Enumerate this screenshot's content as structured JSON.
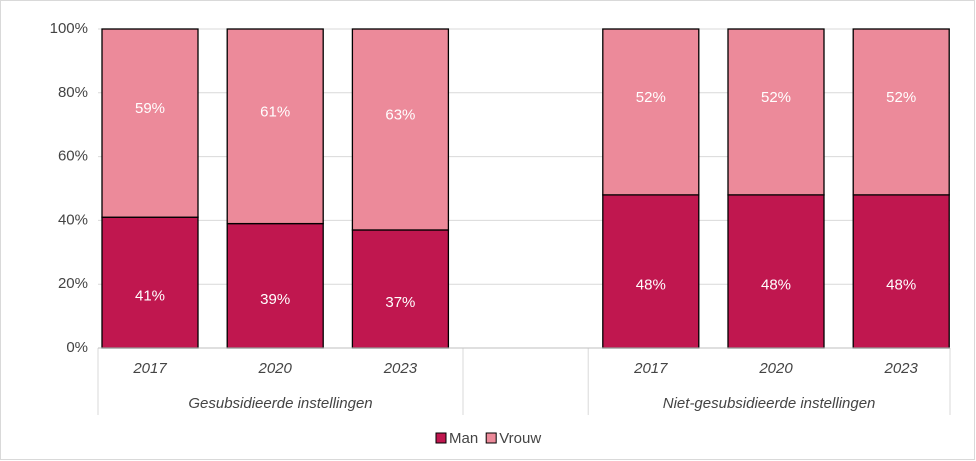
{
  "chart_data": {
    "type": "stacked_bar",
    "groups": [
      {
        "name": "Gesubsidieerde instellingen",
        "categories": [
          "2017",
          "2020",
          "2023"
        ]
      },
      {
        "name": null,
        "categories": [
          null
        ]
      },
      {
        "name": "Niet-gesubsidieerde instellingen",
        "categories": [
          "2017",
          "2020",
          "2023"
        ]
      }
    ],
    "series": [
      {
        "name": "Man",
        "color": "#c0174f",
        "values": [
          41,
          39,
          37,
          null,
          48,
          48,
          48
        ],
        "value_labels": [
          "41%",
          "39%",
          "37%",
          null,
          "48%",
          "48%",
          "48%"
        ]
      },
      {
        "name": "Vrouw",
        "color": "#ec8a9a",
        "values": [
          59,
          61,
          63,
          null,
          52,
          52,
          52
        ],
        "value_labels": [
          "59%",
          "61%",
          "63%",
          null,
          "52%",
          "52%",
          "52%"
        ]
      }
    ],
    "ylim": [
      0,
      100
    ],
    "yticks": [
      {
        "value": 0,
        "label": "0%"
      },
      {
        "value": 20,
        "label": "20%"
      },
      {
        "value": 40,
        "label": "40%"
      },
      {
        "value": 60,
        "label": "60%"
      },
      {
        "value": 80,
        "label": "80%"
      },
      {
        "value": 100,
        "label": "100%"
      }
    ],
    "grid": true,
    "legend": "bottom"
  }
}
